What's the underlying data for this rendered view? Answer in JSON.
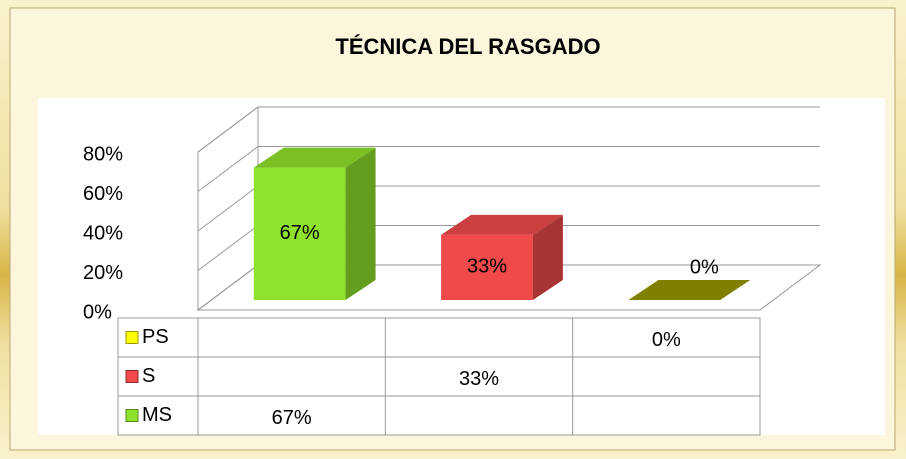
{
  "chart_data": {
    "type": "bar3d",
    "title": "TÉCNICA DEL RASGADO",
    "categories": [
      null,
      null,
      null
    ],
    "series": [
      {
        "name": "PS",
        "color": "#ffff00",
        "values": [
          null,
          null,
          0
        ],
        "value_labels": [
          null,
          null,
          "0%"
        ]
      },
      {
        "name": "S",
        "color": "#f04a4a",
        "values": [
          null,
          33,
          null
        ],
        "value_labels": [
          null,
          "33%",
          null
        ]
      },
      {
        "name": "MS",
        "color": "#8fe22c",
        "values": [
          67,
          null,
          null
        ],
        "value_labels": [
          "67%",
          null,
          null
        ]
      }
    ],
    "ylim": [
      0,
      80
    ],
    "yticks": [
      {
        "value": 0,
        "label": "0%"
      },
      {
        "value": 20,
        "label": "20%"
      },
      {
        "value": 40,
        "label": "40%"
      },
      {
        "value": 60,
        "label": "60%"
      },
      {
        "value": 80,
        "label": "80%"
      }
    ],
    "grid": true,
    "data_table": true
  }
}
